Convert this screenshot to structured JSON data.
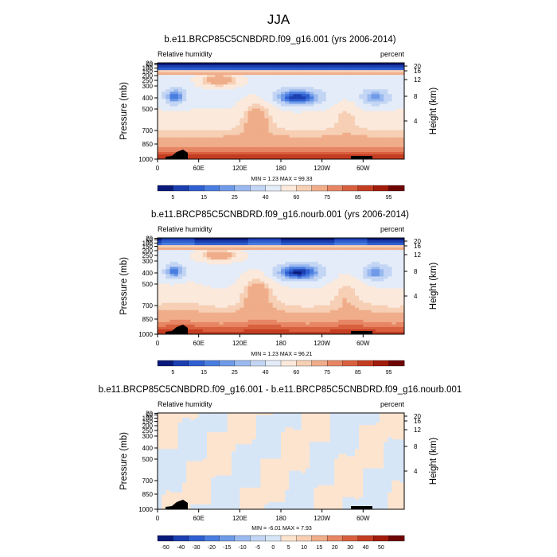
{
  "figure_title": "JJA",
  "palette": {
    "rh": [
      "#0a1a7a",
      "#1c3fb0",
      "#2f5fd0",
      "#4a7de0",
      "#6f9ae8",
      "#9ab9ef",
      "#c3d5f4",
      "#e3ecf8",
      "#fbe9dc",
      "#f6cfb4",
      "#f0ad8a",
      "#e78664",
      "#d9603f",
      "#c43d22",
      "#a21c0c",
      "#6e0505"
    ],
    "diff": [
      "#0a1a7a",
      "#1c3fb0",
      "#2f5fd0",
      "#4a7de0",
      "#6f9ae8",
      "#9ab9ef",
      "#c3d5f4",
      "#d6e6f7",
      "#fde4cf",
      "#f6cfb4",
      "#f0ad8a",
      "#e78664",
      "#d9603f",
      "#c43d22",
      "#a21c0c",
      "#6e0505"
    ],
    "topography": "#000000"
  },
  "chart_data": [
    {
      "type": "heatmap",
      "title": "b.e11.BRCP85C5CNBDRD.f09_g16.001 (yrs 2006-2014)",
      "left_label": "Relative humidity",
      "right_label": "percent",
      "ylabel": "Pressure (mb)",
      "ylabel_right": "Height (km)",
      "x_ticks": [
        "0",
        "60E",
        "120E",
        "180",
        "120W",
        "60W"
      ],
      "y_ticks": [
        "20",
        "50",
        "100",
        "150",
        "200",
        "250",
        "300",
        "400",
        "500",
        "700",
        "850",
        "1000"
      ],
      "height_ticks": [
        "20",
        "16",
        "12",
        "8",
        "4"
      ],
      "stats": "MIN =   1.23  MAX =  99.33",
      "colorbar_labels": [
        "5",
        "15",
        "25",
        "40",
        "60",
        "75",
        "85",
        "95"
      ],
      "ylim": [
        1000,
        10
      ],
      "xlim": [
        0,
        360
      ],
      "features": [
        {
          "lon": 205,
          "p": 410,
          "rh": 5
        },
        {
          "lon": 25,
          "p": 400,
          "rh": 15
        },
        {
          "lon": 310,
          "p": 430,
          "rh": 22
        },
        {
          "lon": 90,
          "p": 200,
          "rh": 90
        },
        {
          "lon": 180,
          "p": 960,
          "rh": 95
        }
      ]
    },
    {
      "type": "heatmap",
      "title": "b.e11.BRCP85C5CNBDRD.f09_g16.nourb.001 (yrs 2006-2014)",
      "left_label": "Relative humidity",
      "right_label": "percent",
      "ylabel": "Pressure (mb)",
      "ylabel_right": "Height (km)",
      "x_ticks": [
        "0",
        "60E",
        "120E",
        "180",
        "120W",
        "60W"
      ],
      "y_ticks": [
        "20",
        "50",
        "100",
        "150",
        "200",
        "250",
        "300",
        "400",
        "500",
        "700",
        "850",
        "1000"
      ],
      "height_ticks": [
        "20",
        "16",
        "12",
        "8",
        "4"
      ],
      "stats": "MIN =   1.23  MAX =  96.21",
      "colorbar_labels": [
        "5",
        "15",
        "25",
        "40",
        "60",
        "75",
        "85",
        "95"
      ],
      "ylim": [
        1000,
        10
      ],
      "xlim": [
        0,
        360
      ],
      "features": [
        {
          "lon": 205,
          "p": 410,
          "rh": 5
        },
        {
          "lon": 25,
          "p": 400,
          "rh": 15
        },
        {
          "lon": 310,
          "p": 430,
          "rh": 22
        },
        {
          "lon": 90,
          "p": 200,
          "rh": 90
        },
        {
          "lon": 180,
          "p": 960,
          "rh": 95
        }
      ]
    },
    {
      "type": "heatmap",
      "title": "b.e11.BRCP85C5CNBDRD.f09_g16.001 - b.e11.BRCP85C5CNBDRD.f09_g16.nourb.001",
      "left_label": "Relative humidity",
      "right_label": "percent",
      "ylabel": "Pressure (mb)",
      "ylabel_right": "Height (km)",
      "x_ticks": [
        "0",
        "60E",
        "120E",
        "180",
        "120W",
        "60W"
      ],
      "y_ticks": [
        "20",
        "50",
        "100",
        "150",
        "200",
        "250",
        "300",
        "400",
        "500",
        "700",
        "850",
        "1000"
      ],
      "height_ticks": [
        "20",
        "16",
        "12",
        "8",
        "4"
      ],
      "stats": "MIN =  -6.01  MAX =   7.93",
      "colorbar_labels": [
        "-50",
        "-40",
        "-30",
        "-20",
        "-15",
        "-10",
        "-5",
        "0",
        "5",
        "10",
        "15",
        "20",
        "30",
        "40",
        "50"
      ],
      "ylim": [
        1000,
        10
      ],
      "xlim": [
        0,
        360
      ]
    }
  ]
}
